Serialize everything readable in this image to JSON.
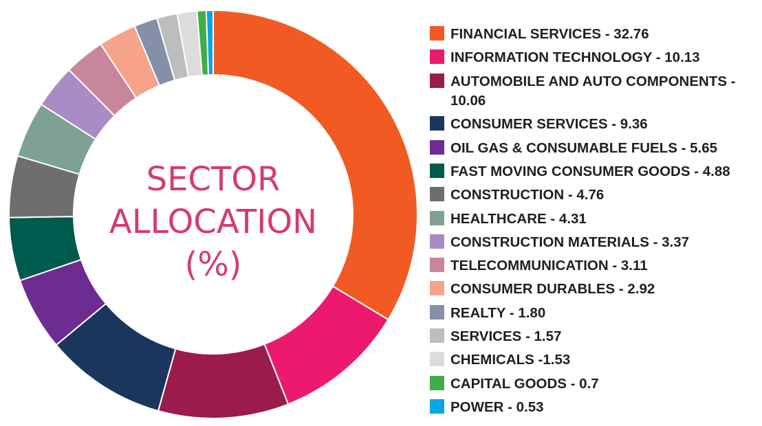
{
  "chart_data": {
    "type": "pie",
    "title_lines": [
      "SECTOR",
      "ALLOCATION",
      "(%)"
    ],
    "series": [
      {
        "label": "FINANCIAL SERVICES - 32.76",
        "value": 32.76,
        "color": "#f15a22"
      },
      {
        "label": "INFORMATION TECHNOLOGY - 10.13",
        "value": 10.13,
        "color": "#ec1a6e"
      },
      {
        "label": "AUTOMOBILE AND AUTO COMPONENTS - 10.06",
        "value": 10.06,
        "color": "#9b1b4a"
      },
      {
        "label": "CONSUMER SERVICES - 9.36",
        "value": 9.36,
        "color": "#1b365d"
      },
      {
        "label": "OIL GAS & CONSUMABLE FUELS - 5.65",
        "value": 5.65,
        "color": "#6d2c91"
      },
      {
        "label": "FAST MOVING CONSUMER GOODS - 4.88",
        "value": 4.88,
        "color": "#005a4e"
      },
      {
        "label": "CONSTRUCTION - 4.76",
        "value": 4.76,
        "color": "#6e6e6e"
      },
      {
        "label": "HEALTHCARE - 4.31",
        "value": 4.31,
        "color": "#7ea193"
      },
      {
        "label": "CONSTRUCTION MATERIALS - 3.37",
        "value": 3.37,
        "color": "#a98cc3"
      },
      {
        "label": "TELECOMMUNICATION - 3.11",
        "value": 3.11,
        "color": "#c8869a"
      },
      {
        "label": "CONSUMER DURABLES - 2.92",
        "value": 2.92,
        "color": "#f6a38a"
      },
      {
        "label": "REALTY - 1.80",
        "value": 1.8,
        "color": "#8390a8"
      },
      {
        "label": "SERVICES - 1.57",
        "value": 1.57,
        "color": "#bdbdbd"
      },
      {
        "label": "CHEMICALS -1.53",
        "value": 1.53,
        "color": "#dcdcdc"
      },
      {
        "label": "CAPITAL GOODS  - 0.7",
        "value": 0.7,
        "color": "#3fae49"
      },
      {
        "label": "POWER  - 0.53",
        "value": 0.53,
        "color": "#0aa5e3"
      }
    ]
  }
}
